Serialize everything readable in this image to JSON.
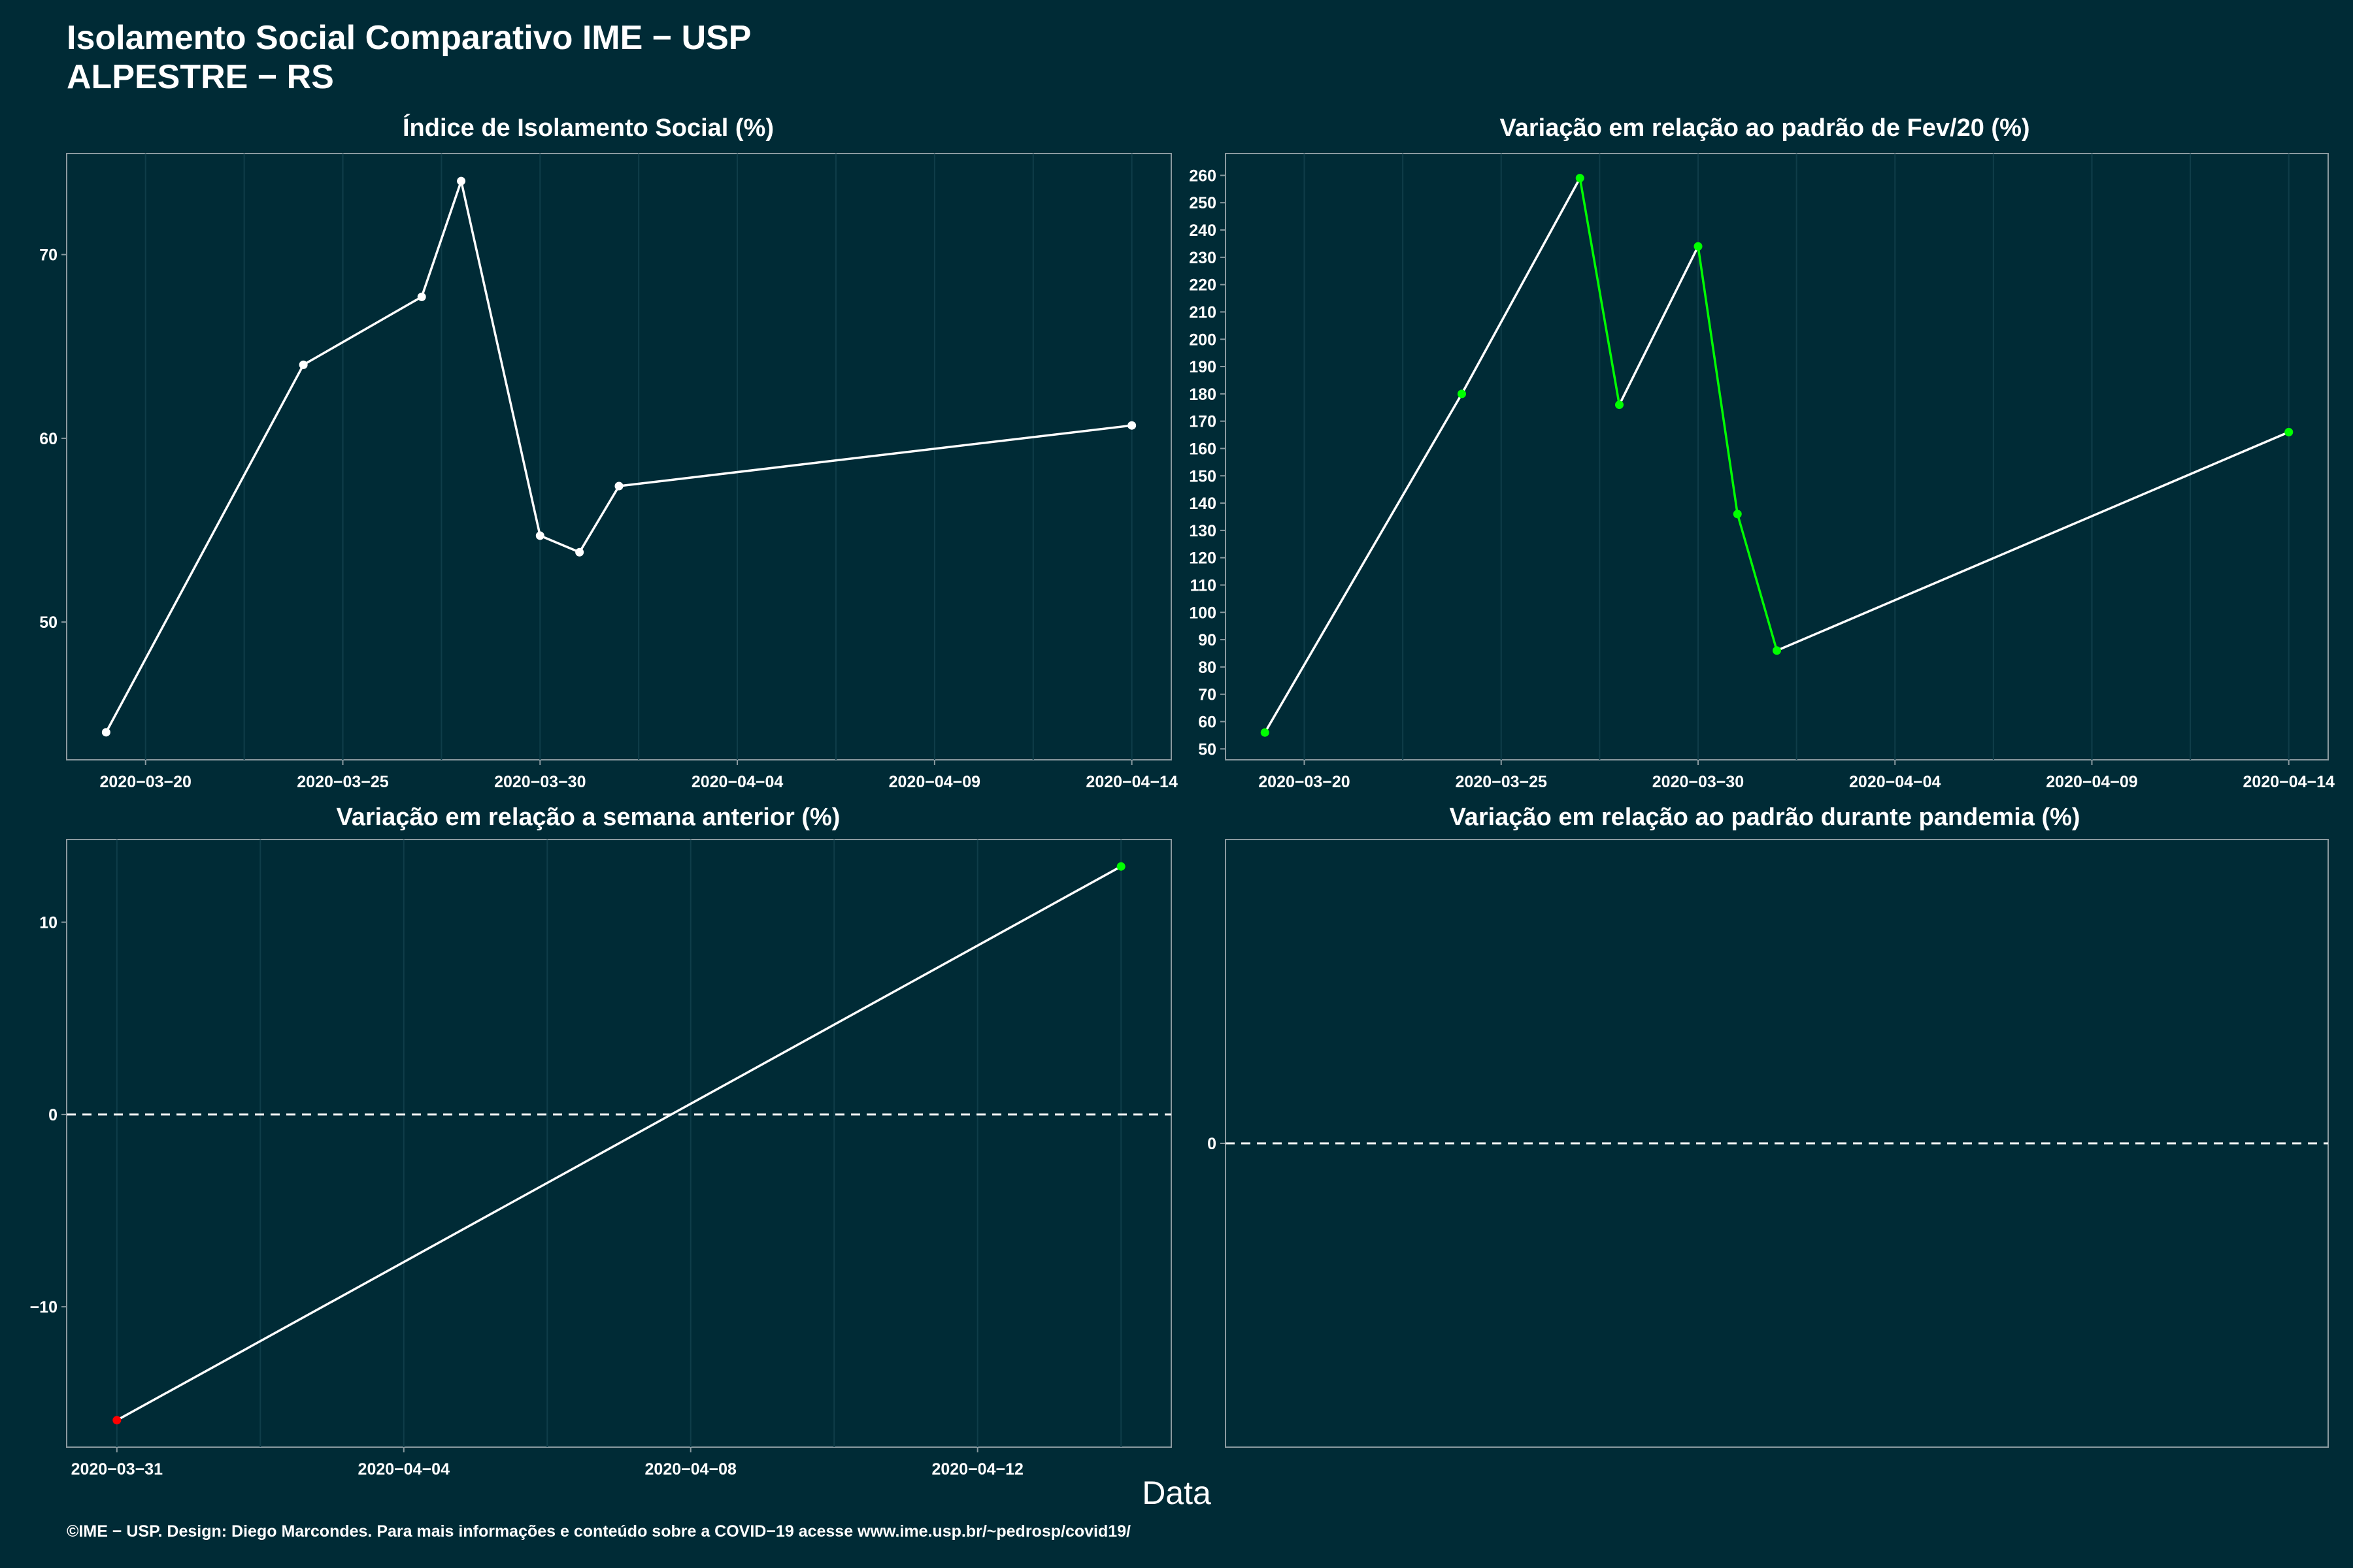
{
  "header": {
    "title": "Isolamento Social Comparativo IME − USP",
    "subtitle": "ALPESTRE − RS"
  },
  "xlabel": "Data",
  "caption": "©IME − USP. Design: Diego Marcondes. Para mais informações e conteúdo sobre a COVID−19 acesse www.ime.usp.br/~pedrosp/covid19/",
  "colors": {
    "background": "#002b36",
    "line": "#ffffff",
    "green": "#00ff00",
    "red": "#ff0000",
    "grid": "#0f3d49",
    "border": "#8a9aa0"
  },
  "chart_data": [
    {
      "type": "line",
      "title": "Índice de Isolamento Social (%)",
      "x": [
        "2020-03-19",
        "2020-03-24",
        "2020-03-27",
        "2020-03-28",
        "2020-03-30",
        "2020-03-31",
        "2020-04-01",
        "2020-04-14"
      ],
      "values": [
        44.0,
        64.0,
        67.7,
        74.0,
        54.7,
        53.8,
        57.4,
        60.7
      ],
      "point_colors": [
        "white",
        "white",
        "white",
        "white",
        "white",
        "white",
        "white",
        "white"
      ],
      "xticks": [
        "2020−03−20",
        "2020−03−25",
        "2020−03−30",
        "2020−04−04",
        "2020−04−09",
        "2020−04−14"
      ],
      "yticks": [
        "50",
        "60",
        "70"
      ],
      "xlim": [
        "2020-03-18",
        "2020-04-15"
      ],
      "ylim": [
        42.5,
        75.5
      ],
      "grid": true
    },
    {
      "type": "line",
      "title": "Variação em relação ao padrão de Fev/20 (%)",
      "x": [
        "2020-03-19",
        "2020-03-24",
        "2020-03-27",
        "2020-03-28",
        "2020-03-30",
        "2020-03-31",
        "2020-04-01",
        "2020-04-14"
      ],
      "values": [
        56,
        180,
        259,
        176,
        234,
        136,
        86,
        166
      ],
      "point_colors": [
        "green",
        "green",
        "green",
        "green",
        "green",
        "green",
        "green",
        "green"
      ],
      "segment_colors": [
        "white",
        "white",
        "green",
        "white",
        "green",
        "green",
        "white"
      ],
      "xticks": [
        "2020−03−20",
        "2020−03−25",
        "2020−03−30",
        "2020−04−04",
        "2020−04−09",
        "2020−04−14"
      ],
      "yticks": [
        "50",
        "60",
        "70",
        "80",
        "90",
        "100",
        "110",
        "120",
        "130",
        "140",
        "150",
        "160",
        "170",
        "180",
        "190",
        "200",
        "210",
        "220",
        "230",
        "240",
        "250",
        "260"
      ],
      "xlim": [
        "2020-03-18",
        "2020-04-15"
      ],
      "ylim": [
        46,
        268
      ],
      "grid": true
    },
    {
      "type": "line",
      "title": "Variação em relação a semana anterior (%)",
      "x": [
        "2020-03-31",
        "2020-04-14"
      ],
      "values": [
        -15.9,
        12.9
      ],
      "point_colors": [
        "red",
        "green"
      ],
      "xticks": [
        "2020−03−31",
        "2020−04−04",
        "2020−04−08",
        "2020−04−12"
      ],
      "yticks": [
        "−10",
        "0",
        "10"
      ],
      "reference_line": 0,
      "xlim": [
        "2020-03-30.3",
        "2020-04-14.7"
      ],
      "ylim": [
        -17.3,
        14.3
      ],
      "grid": true
    },
    {
      "type": "line",
      "title": "Variação em relação ao padrão durante pandemia (%)",
      "x": [],
      "values": [],
      "yticks": [
        "0"
      ],
      "reference_line": 0,
      "grid": false
    }
  ]
}
